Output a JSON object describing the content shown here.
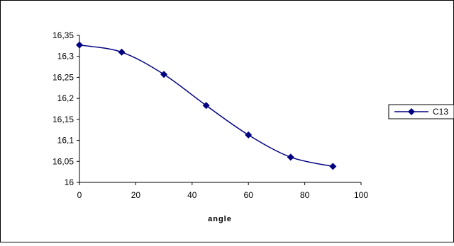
{
  "chart_data": {
    "type": "line",
    "title": "",
    "xlabel": "angle",
    "ylabel": "",
    "xlim": [
      0,
      100
    ],
    "ylim": [
      16,
      16.35
    ],
    "x_ticks": [
      0,
      20,
      40,
      60,
      80,
      100
    ],
    "y_ticks": [
      16,
      16.05,
      16.1,
      16.15,
      16.2,
      16.25,
      16.3,
      16.35
    ],
    "x_tick_labels": [
      "0",
      "20",
      "40",
      "60",
      "80",
      "100"
    ],
    "y_tick_labels": [
      "16",
      "16,05",
      "16,1",
      "16,15",
      "16,2",
      "16,25",
      "16,3",
      "16,35"
    ],
    "grid": false,
    "legend_position": "right",
    "series": [
      {
        "name": "C13",
        "color": "#000080",
        "marker": "diamond",
        "x": [
          0,
          15,
          30,
          45,
          60,
          75,
          90
        ],
        "values": [
          16.327,
          16.31,
          16.257,
          16.183,
          16.113,
          16.06,
          16.038
        ]
      }
    ]
  }
}
